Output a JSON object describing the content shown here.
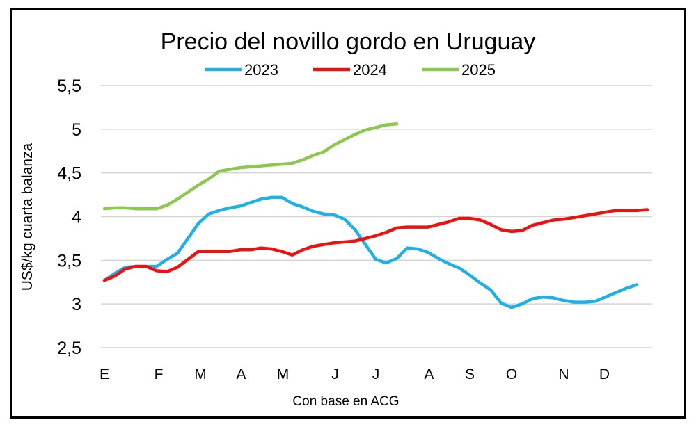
{
  "chart_data": {
    "type": "line",
    "title": "Precio del novillo gordo en Uruguay",
    "xlabel": "Con base en ACG",
    "ylabel": "US$/kg cuarta balanza",
    "ylim": [
      2.5,
      5.5
    ],
    "yticks": [
      "2,5",
      "3",
      "3,5",
      "4",
      "4,5",
      "5",
      "5,5"
    ],
    "ytick_values": [
      2.5,
      3,
      3.5,
      4,
      4.5,
      5,
      5.5
    ],
    "x_unit": "week",
    "xlim": [
      1,
      53
    ],
    "xtick_labels": [
      "E",
      "F",
      "M",
      "A",
      "M",
      "J",
      "J",
      "A",
      "S",
      "O",
      "N",
      "D"
    ],
    "xtick_positions": [
      1,
      6.2,
      10.2,
      14.1,
      18.1,
      23.1,
      27,
      32.1,
      36,
      40,
      45,
      48.9
    ],
    "grid": true,
    "legend": "top",
    "series": [
      {
        "name": "2023",
        "color": "#1fb0e8",
        "values": [
          3.27,
          3.35,
          3.42,
          3.43,
          3.43,
          3.43,
          3.51,
          3.58,
          3.75,
          3.92,
          4.03,
          4.07,
          4.1,
          4.12,
          4.16,
          4.2,
          4.22,
          4.22,
          4.15,
          4.11,
          4.06,
          4.03,
          4.02,
          3.97,
          3.85,
          3.68,
          3.51,
          3.47,
          3.52,
          3.64,
          3.63,
          3.59,
          3.52,
          3.46,
          3.41,
          3.33,
          3.24,
          3.16,
          3.01,
          2.96,
          3.0,
          3.06,
          3.08,
          3.07,
          3.04,
          3.02,
          3.02,
          3.03,
          3.08,
          3.13,
          3.18,
          3.22
        ]
      },
      {
        "name": "2024",
        "color": "#ee1111",
        "values": [
          3.27,
          3.32,
          3.4,
          3.43,
          3.43,
          3.38,
          3.37,
          3.42,
          3.51,
          3.6,
          3.6,
          3.6,
          3.6,
          3.62,
          3.62,
          3.64,
          3.63,
          3.6,
          3.56,
          3.62,
          3.66,
          3.68,
          3.7,
          3.71,
          3.72,
          3.75,
          3.78,
          3.82,
          3.87,
          3.88,
          3.88,
          3.88,
          3.91,
          3.94,
          3.98,
          3.98,
          3.96,
          3.91,
          3.85,
          3.83,
          3.84,
          3.9,
          3.93,
          3.96,
          3.97,
          3.99,
          4.01,
          4.03,
          4.05,
          4.07,
          4.07,
          4.07,
          4.08
        ]
      },
      {
        "name": "2025",
        "color": "#8cc850",
        "values": [
          4.09,
          4.1,
          4.1,
          4.09,
          4.09,
          4.09,
          4.13,
          4.2,
          4.28,
          4.36,
          4.43,
          4.52,
          4.54,
          4.56,
          4.57,
          4.58,
          4.59,
          4.6,
          4.61,
          4.65,
          4.7,
          4.74,
          4.82,
          4.88,
          4.94,
          4.99,
          5.02,
          5.05,
          5.06
        ]
      }
    ]
  }
}
